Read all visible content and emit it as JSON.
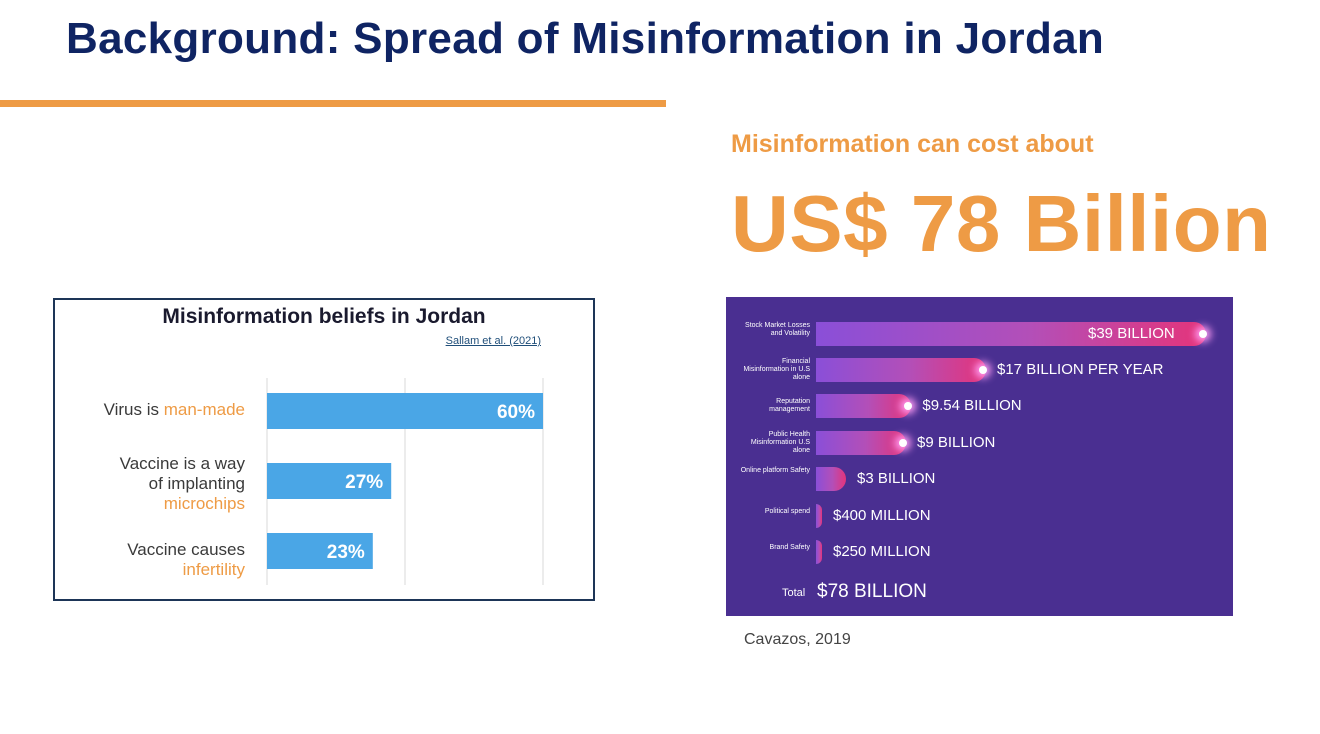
{
  "slide": {
    "title": "Background: Spread of Misinformation in Jordan",
    "cost_intro": "Misinformation can cost about",
    "cost_value": "US$ 78 Billion",
    "citation": "Cavazos, 2019",
    "colors": {
      "title": "#0f2463",
      "accent": "#ee9b45",
      "bar": "#4aa6e6",
      "infographic_bg": "#4a2f91"
    }
  },
  "chart_data": [
    {
      "type": "bar",
      "orientation": "horizontal",
      "title": "Misinformation beliefs in Jordan",
      "source": "Sallam et al. (2021)",
      "categories": [
        {
          "parts": [
            "Virus is ",
            "man-made"
          ]
        },
        {
          "parts": [
            "Vaccine is a way",
            "of implanting",
            "microchips"
          ]
        },
        {
          "parts": [
            "Vaccine causes",
            "infertility"
          ]
        }
      ],
      "values": [
        60,
        27,
        23
      ],
      "value_labels": [
        "60%",
        "27%",
        "23%"
      ],
      "unit": "%",
      "xlim": [
        0,
        100
      ],
      "grid": true
    },
    {
      "type": "bar",
      "orientation": "horizontal",
      "categories": [
        "Stock Market Losses and Volatility",
        "Financial Misinformation in U.S alone",
        "Reputation management",
        "Public Health Misinformation U.S alone",
        "Online platform Safety",
        "Political spend",
        "Brand Safety"
      ],
      "values": [
        39,
        17,
        9.54,
        9,
        3,
        0.4,
        0.25
      ],
      "unit": "billion USD",
      "value_labels": [
        "$39 BILLION",
        "$17 BILLION PER YEAR",
        "$9.54 BILLION",
        "$9 BILLION",
        "$3 BILLION",
        "$400 MILLION",
        "$250 MILLION"
      ],
      "total_label": "Total",
      "total_value": "$78 BILLION"
    }
  ]
}
